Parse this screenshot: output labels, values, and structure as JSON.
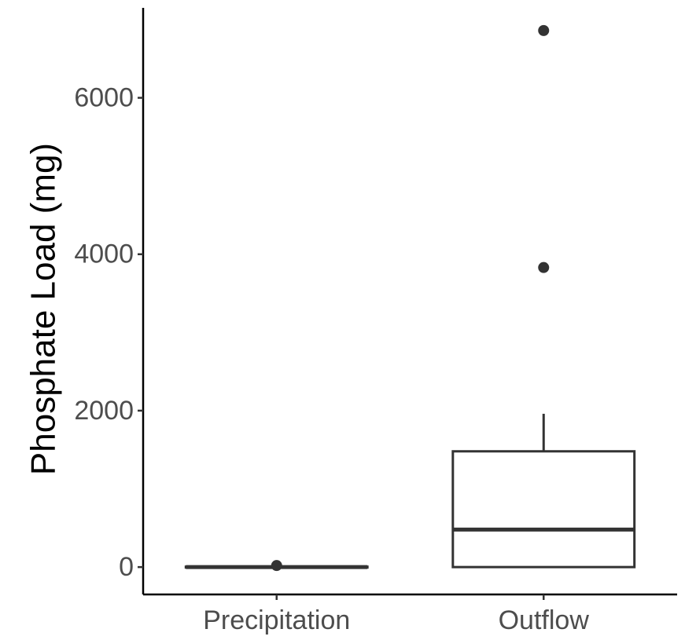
{
  "chart_data": {
    "type": "box",
    "title": "",
    "xlabel": "",
    "ylabel": "Phosphate Load (mg)",
    "ylim": [
      -350,
      7150
    ],
    "yticks": [
      0,
      2000,
      4000,
      6000
    ],
    "ytick_labels": [
      "0",
      "2000",
      "4000",
      "6000"
    ],
    "categories": [
      "Precipitation",
      "Outflow"
    ],
    "grid": false,
    "legend": "none",
    "boxes": [
      {
        "category": "Precipitation",
        "whisker_low": 0,
        "q1": 0,
        "median": 0,
        "q3": 5,
        "whisker_high": 5,
        "outliers": [
          20
        ]
      },
      {
        "category": "Outflow",
        "whisker_low": 0,
        "q1": 0,
        "median": 480,
        "q3": 1480,
        "whisker_high": 1960,
        "outliers": [
          3830,
          6860
        ]
      }
    ],
    "colors": {
      "box_stroke": "#333333",
      "box_fill": "#ffffff",
      "tick_text": "#4d4d4d",
      "axis": "#000000"
    }
  }
}
